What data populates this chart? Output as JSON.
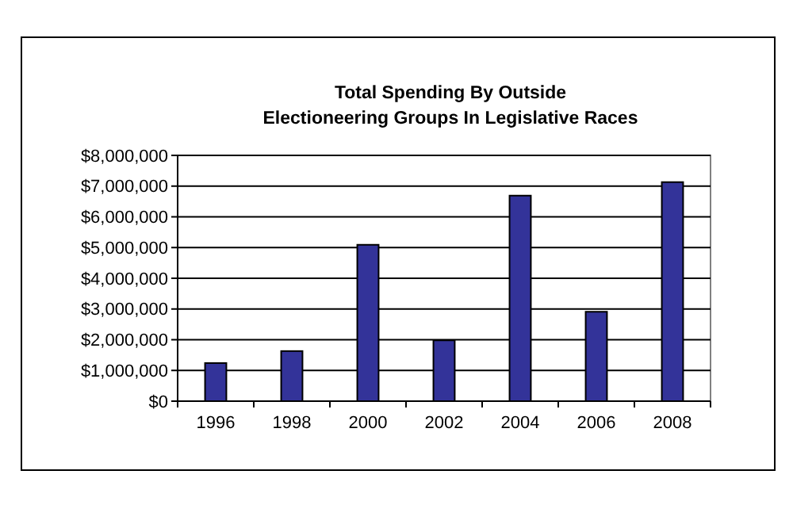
{
  "chart_data": {
    "type": "bar",
    "title": "Total Spending By Outside\nElectioneering Groups In Legislative Races",
    "categories": [
      "1996",
      "1998",
      "2000",
      "2002",
      "2004",
      "2006",
      "2008"
    ],
    "values": [
      1240000,
      1630000,
      5090000,
      1980000,
      6690000,
      2910000,
      7130000
    ],
    "color": "#333399",
    "ylim": [
      0,
      8000000
    ],
    "yticks": [
      {
        "value": 0,
        "label": "$0"
      },
      {
        "value": 1000000,
        "label": "$1,000,000"
      },
      {
        "value": 2000000,
        "label": "$2,000,000"
      },
      {
        "value": 3000000,
        "label": "$3,000,000"
      },
      {
        "value": 4000000,
        "label": "$4,000,000"
      },
      {
        "value": 5000000,
        "label": "$5,000,000"
      },
      {
        "value": 6000000,
        "label": "$6,000,000"
      },
      {
        "value": 7000000,
        "label": "$7,000,000"
      },
      {
        "value": 8000000,
        "label": "$8,000,000"
      }
    ],
    "grid": "y"
  }
}
